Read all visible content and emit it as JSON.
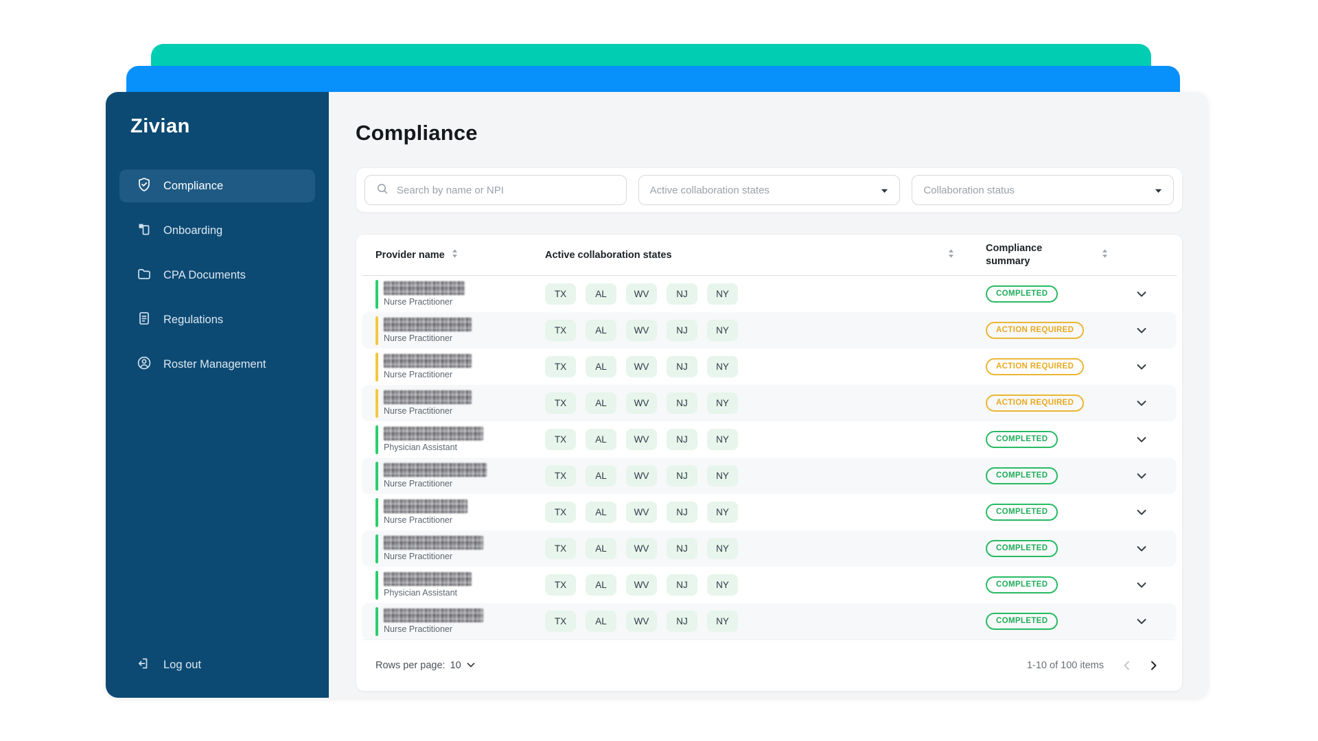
{
  "brand": {
    "logo": "Zivian"
  },
  "colors": {
    "decor_teal": "#00CDB2",
    "decor_blue": "#0890FB",
    "sidebar_navy": "#0D4A73",
    "active_item": "#1E5A84",
    "completed_green": "#27BA63",
    "action_amber": "#EBB634",
    "chip_mint": "#E7F5EC"
  },
  "sidebar": {
    "items": [
      {
        "label": "Compliance",
        "icon": "shield-check-icon",
        "active": true
      },
      {
        "label": "Onboarding",
        "icon": "onboarding-icon",
        "active": false
      },
      {
        "label": "CPA Documents",
        "icon": "folder-icon",
        "active": false
      },
      {
        "label": "Regulations",
        "icon": "document-icon",
        "active": false
      },
      {
        "label": "Roster Management",
        "icon": "user-circle-icon",
        "active": false
      }
    ],
    "logout_label": "Log out"
  },
  "header": {
    "title": "Compliance"
  },
  "filters": {
    "search_placeholder": "Search by name or NPI",
    "states_placeholder": "Active collaboration states",
    "status_placeholder": "Collaboration status"
  },
  "table": {
    "columns": [
      "Provider name",
      "Active collaboration states",
      "Compliance summary"
    ],
    "status_labels": {
      "completed": "COMPLETED",
      "action_required": "ACTION REQUIRED"
    },
    "rows": [
      {
        "role": "Nurse Practitioner",
        "status": "completed",
        "states": [
          "TX",
          "AL",
          "WV",
          "NJ",
          "NY"
        ],
        "name_width": 118
      },
      {
        "role": "Nurse Practitioner",
        "status": "action_required",
        "states": [
          "TX",
          "AL",
          "WV",
          "NJ",
          "NY"
        ],
        "name_width": 128
      },
      {
        "role": "Nurse Practitioner",
        "status": "action_required",
        "states": [
          "TX",
          "AL",
          "WV",
          "NJ",
          "NY"
        ],
        "name_width": 128
      },
      {
        "role": "Nurse Practitioner",
        "status": "action_required",
        "states": [
          "TX",
          "AL",
          "WV",
          "NJ",
          "NY"
        ],
        "name_width": 128
      },
      {
        "role": "Physician Assistant",
        "status": "completed",
        "states": [
          "TX",
          "AL",
          "WV",
          "NJ",
          "NY"
        ],
        "name_width": 145
      },
      {
        "role": "Nurse Practitioner",
        "status": "completed",
        "states": [
          "TX",
          "AL",
          "WV",
          "NJ",
          "NY"
        ],
        "name_width": 150
      },
      {
        "role": "Nurse Practitioner",
        "status": "completed",
        "states": [
          "TX",
          "AL",
          "WV",
          "NJ",
          "NY"
        ],
        "name_width": 122
      },
      {
        "role": "Nurse Practitioner",
        "status": "completed",
        "states": [
          "TX",
          "AL",
          "WV",
          "NJ",
          "NY"
        ],
        "name_width": 145
      },
      {
        "role": "Physician Assistant",
        "status": "completed",
        "states": [
          "TX",
          "AL",
          "WV",
          "NJ",
          "NY"
        ],
        "name_width": 128
      },
      {
        "role": "Nurse Practitioner",
        "status": "completed",
        "states": [
          "TX",
          "AL",
          "WV",
          "NJ",
          "NY"
        ],
        "name_width": 145
      }
    ]
  },
  "pagination": {
    "rows_per_page_label": "Rows per page:",
    "rows_per_page_value": "10",
    "range_label": "1-10 of 100 items"
  }
}
